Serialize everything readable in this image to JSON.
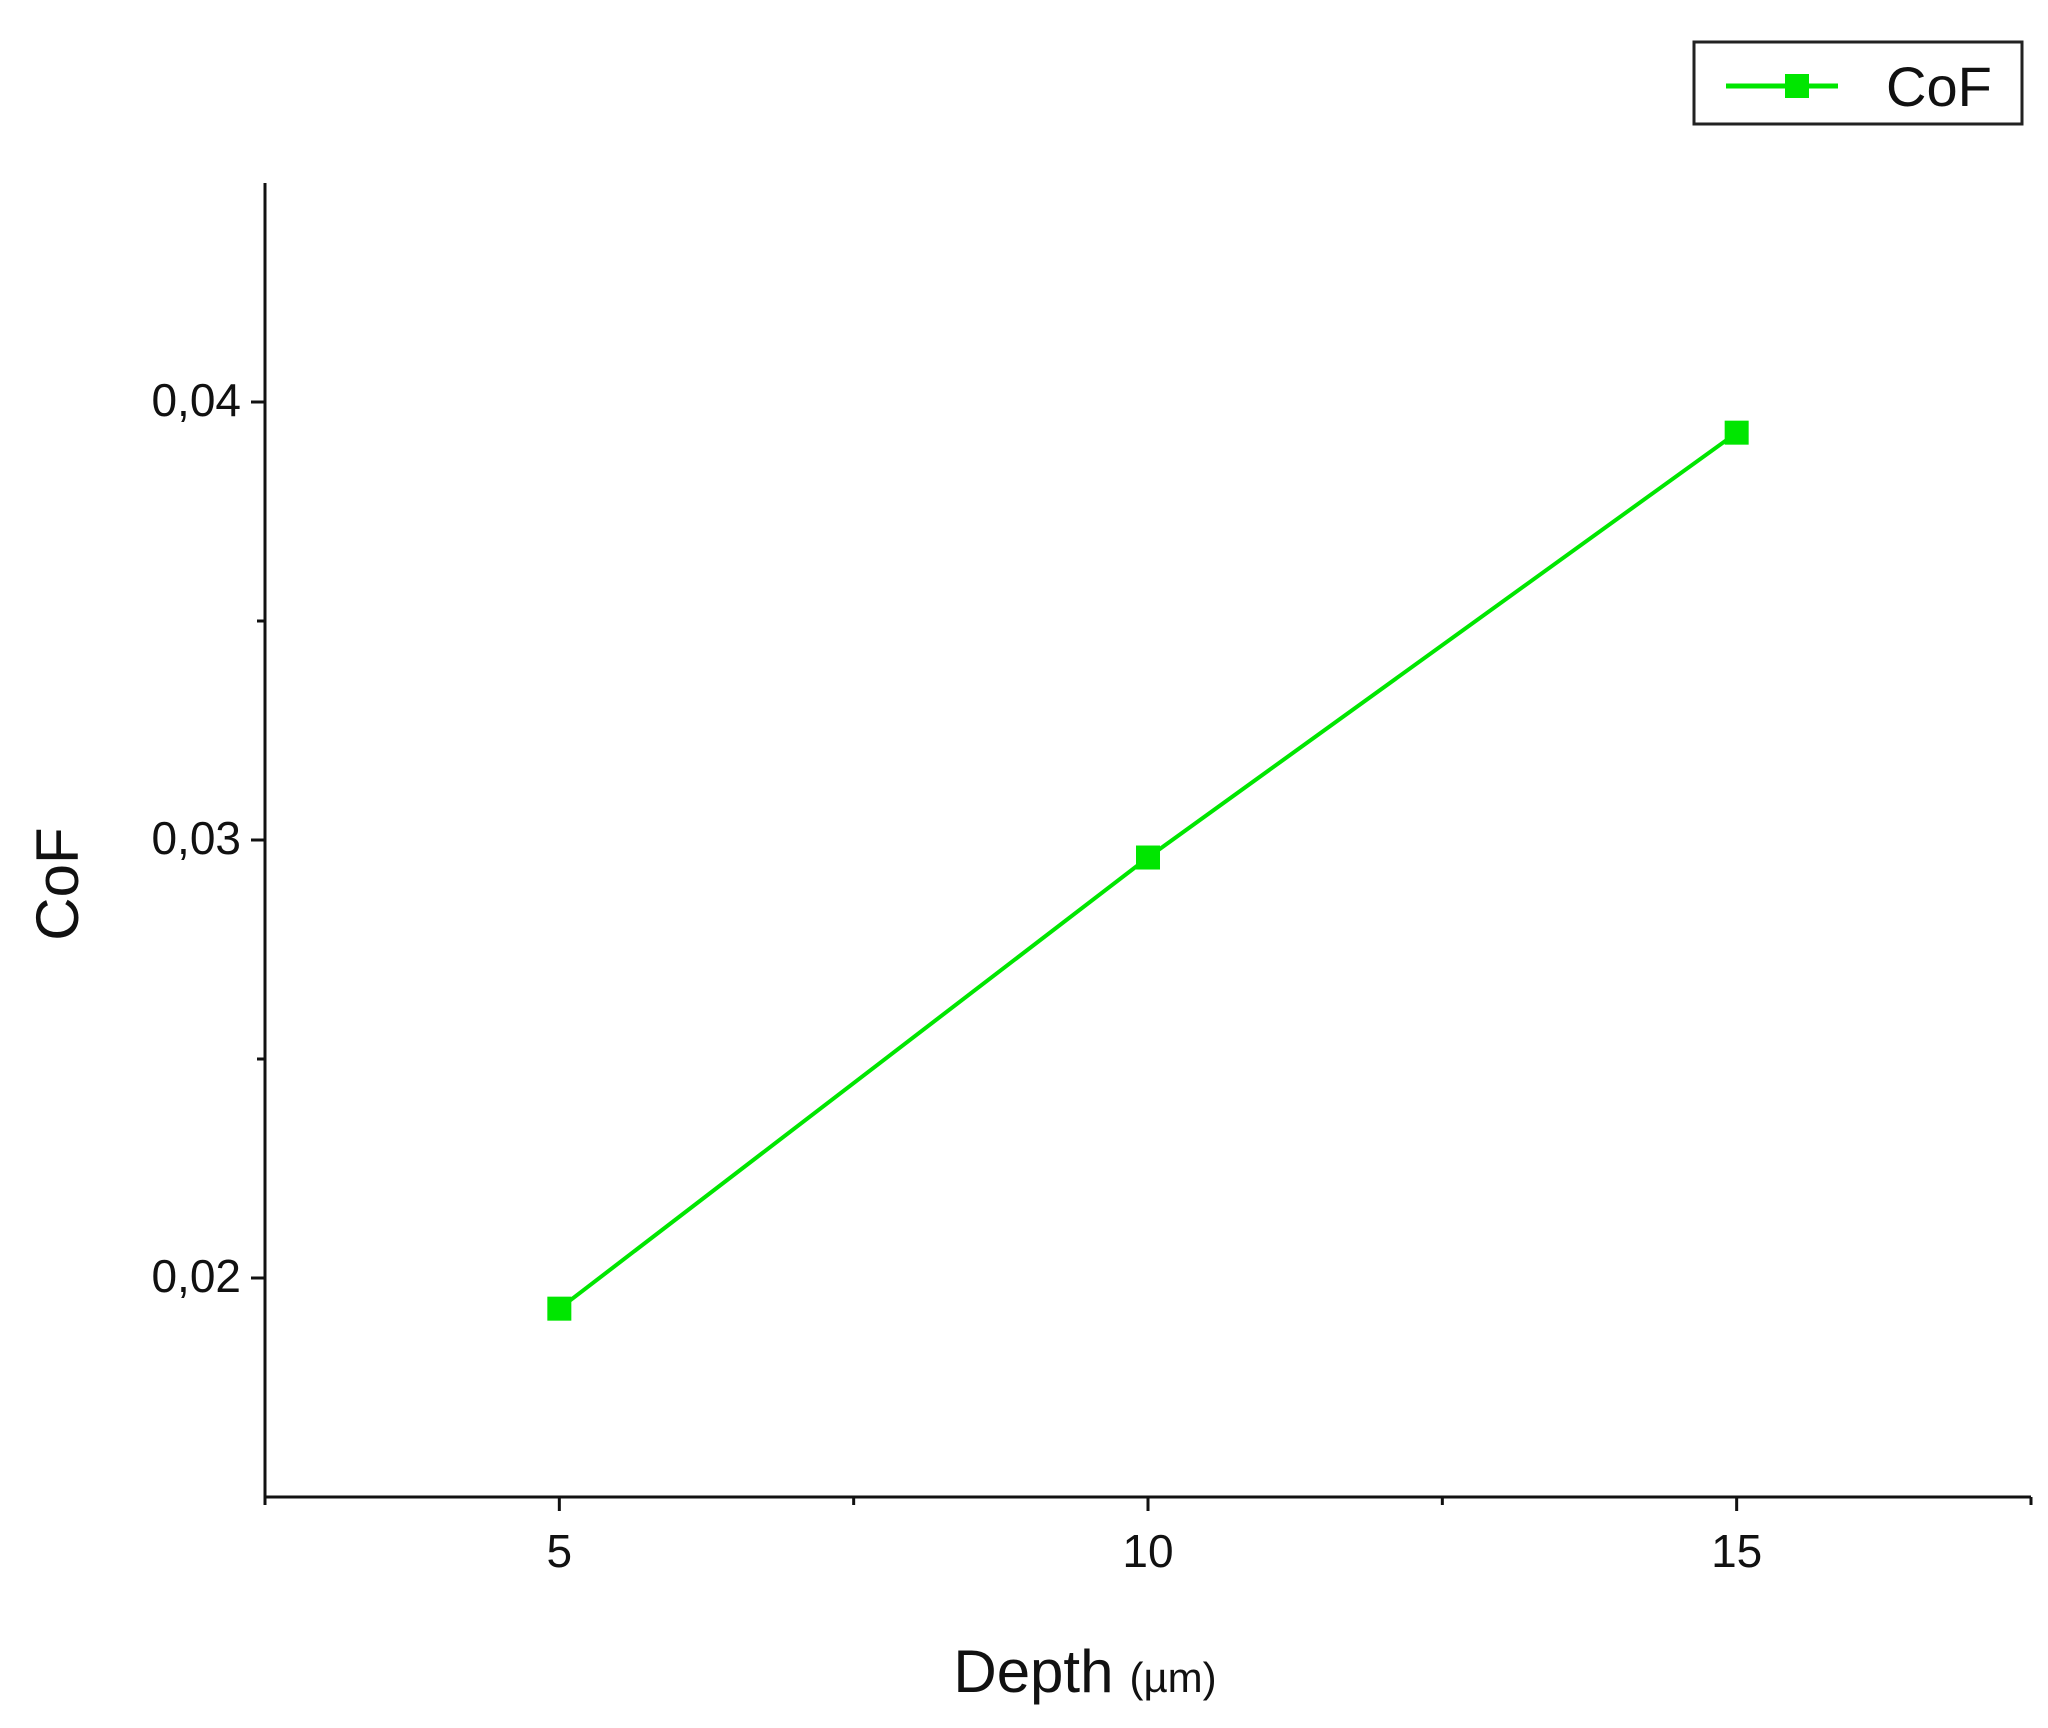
{
  "chart_data": {
    "type": "line",
    "x": [
      5,
      10,
      15
    ],
    "series": [
      {
        "name": "CoF",
        "values": [
          0.0193,
          0.0296,
          0.0393
        ],
        "color": "#00e600",
        "marker": "square"
      }
    ],
    "xlabel": "Depth",
    "xlabel_unit": "(µm)",
    "ylabel": "CoF",
    "xlim": [
      2.5,
      17.5
    ],
    "ylim": [
      0.015,
      0.045
    ],
    "xticks": [
      5,
      10,
      15
    ],
    "xtick_labels": [
      "5",
      "10",
      "15"
    ],
    "xminor_ticks": [
      2.5,
      7.5,
      12.5,
      17.5
    ],
    "yticks": [
      0.02,
      0.03,
      0.04
    ],
    "ytick_labels": [
      "0,02",
      "0,03",
      "0,04"
    ],
    "yminor_ticks": [
      0.025,
      0.035
    ],
    "grid": false,
    "legend_position": "top-right"
  }
}
